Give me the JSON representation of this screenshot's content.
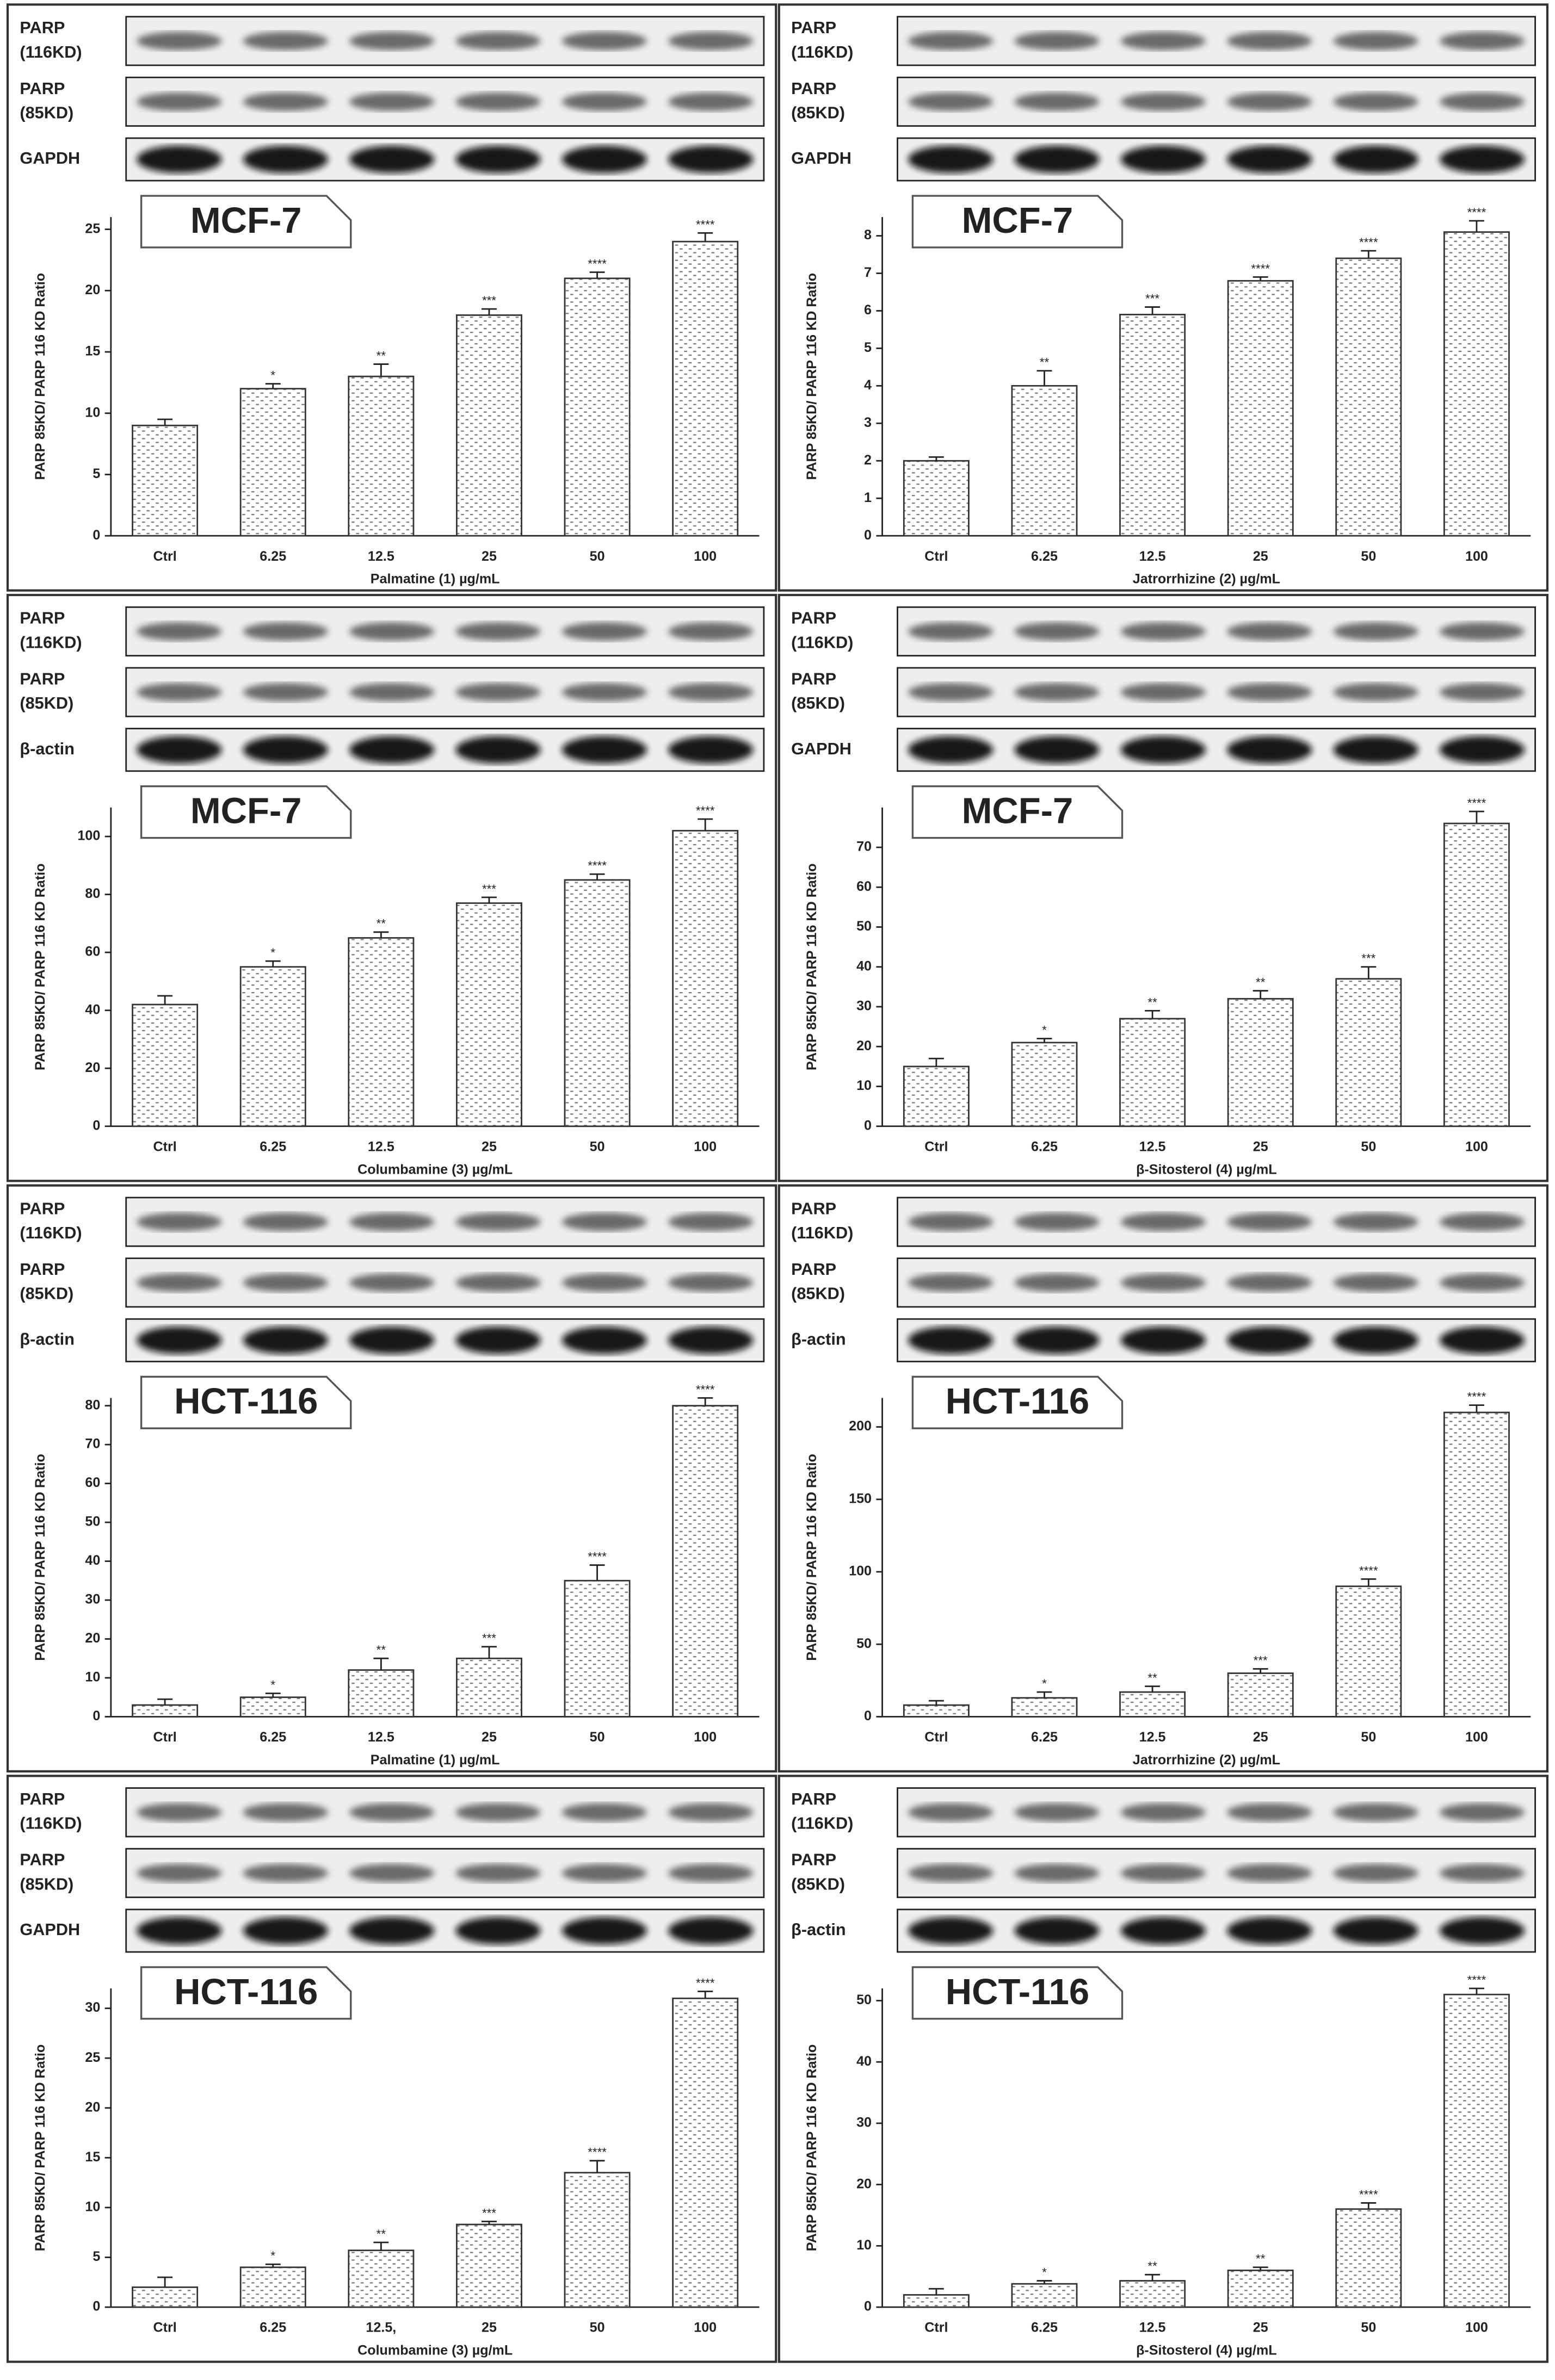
{
  "chart_data": [
    {
      "type": "bar",
      "cell_line": "MCF-7",
      "blots": [
        [
          "PARP",
          "(116KD)"
        ],
        [
          "PARP",
          "(85KD)"
        ],
        [
          "GAPDH"
        ]
      ],
      "ylabel": "PARP 85KD/ PARP 116 KD Ratio",
      "xlabel": "Palmatine  (1) µg/mL",
      "categories": [
        "Ctrl",
        "6.25",
        "12.5",
        "25",
        "50",
        "100"
      ],
      "values": [
        9,
        12,
        13,
        18,
        21,
        24
      ],
      "errors": [
        0.5,
        0.4,
        1,
        0.5,
        0.5,
        0.7
      ],
      "significance": [
        null,
        "*",
        "**",
        "***",
        "****",
        "****"
      ],
      "ylim": [
        0,
        26
      ],
      "yticks": [
        0,
        5,
        10,
        15,
        20,
        25
      ]
    },
    {
      "type": "bar",
      "cell_line": "MCF-7",
      "blots": [
        [
          "PARP",
          "(116KD)"
        ],
        [
          "PARP",
          "(85KD)"
        ],
        [
          "GAPDH"
        ]
      ],
      "ylabel": "PARP 85KD/ PARP 116 KD Ratio",
      "xlabel": "Jatrorrhizine  (2) µg/mL",
      "categories": [
        "Ctrl",
        "6.25",
        "12.5",
        "25",
        "50",
        "100"
      ],
      "values": [
        2,
        4,
        5.9,
        6.8,
        7.4,
        8.1
      ],
      "errors": [
        0.1,
        0.4,
        0.2,
        0.1,
        0.2,
        0.3
      ],
      "significance": [
        null,
        "**",
        "***",
        "****",
        "****",
        "****"
      ],
      "ylim": [
        0,
        8.5
      ],
      "yticks": [
        0,
        1,
        2,
        3,
        4,
        5,
        6,
        7,
        8
      ]
    },
    {
      "type": "bar",
      "cell_line": "MCF-7",
      "blots": [
        [
          "PARP",
          "(116KD)"
        ],
        [
          "PARP",
          "(85KD)"
        ],
        [
          "β-actin"
        ]
      ],
      "ylabel": "PARP 85KD/ PARP 116 KD Ratio",
      "xlabel": "Columbamine  (3) µg/mL",
      "categories": [
        "Ctrl",
        "6.25",
        "12.5",
        "25",
        "50",
        "100"
      ],
      "values": [
        42,
        55,
        65,
        77,
        85,
        102
      ],
      "errors": [
        3,
        2,
        2,
        2,
        2,
        4
      ],
      "significance": [
        null,
        "*",
        "**",
        "***",
        "****",
        "****"
      ],
      "ylim": [
        0,
        110
      ],
      "yticks": [
        0,
        20,
        40,
        60,
        80,
        100
      ]
    },
    {
      "type": "bar",
      "cell_line": "MCF-7",
      "blots": [
        [
          "PARP",
          "(116KD)"
        ],
        [
          "PARP",
          "(85KD)"
        ],
        [
          "GAPDH"
        ]
      ],
      "ylabel": "PARP 85KD/ PARP 116 KD Ratio",
      "xlabel": "β-Sitosterol  (4)  µg/mL",
      "categories": [
        "Ctrl",
        "6.25",
        "12.5",
        "25",
        "50",
        "100"
      ],
      "values": [
        15,
        21,
        27,
        32,
        37,
        76
      ],
      "errors": [
        2,
        1,
        2,
        2,
        3,
        3
      ],
      "significance": [
        null,
        "*",
        "**",
        "**",
        "***",
        "****"
      ],
      "ylim": [
        0,
        80
      ],
      "yticks": [
        0,
        10,
        20,
        30,
        40,
        50,
        60,
        70
      ]
    },
    {
      "type": "bar",
      "cell_line": "HCT-116",
      "blots": [
        [
          "PARP",
          "(116KD)"
        ],
        [
          "PARP",
          "(85KD)"
        ],
        [
          "β-actin"
        ]
      ],
      "ylabel": "PARP 85KD/ PARP 116 KD Ratio",
      "xlabel": "Palmatine  (1)  µg/mL",
      "categories": [
        "Ctrl",
        "6.25",
        "12.5",
        "25",
        "50",
        "100"
      ],
      "values": [
        3,
        5,
        12,
        15,
        35,
        80
      ],
      "errors": [
        1.5,
        1,
        3,
        3,
        4,
        2
      ],
      "significance": [
        null,
        "*",
        "**",
        "***",
        "****",
        "****"
      ],
      "ylim": [
        0,
        82
      ],
      "yticks": [
        0,
        10,
        20,
        30,
        40,
        50,
        60,
        70,
        80
      ]
    },
    {
      "type": "bar",
      "cell_line": "HCT-116",
      "blots": [
        [
          "PARP",
          "(116KD)"
        ],
        [
          "PARP",
          "(85KD)"
        ],
        [
          "β-actin"
        ]
      ],
      "ylabel": "PARP 85KD/ PARP 116 KD Ratio",
      "xlabel": "Jatrorrhizine  (2)  µg/mL",
      "categories": [
        "Ctrl",
        "6.25",
        "12.5",
        "25",
        "50",
        "100"
      ],
      "values": [
        8,
        13,
        17,
        30,
        90,
        210
      ],
      "errors": [
        3,
        4,
        4,
        3,
        5,
        5
      ],
      "significance": [
        null,
        "*",
        "**",
        "***",
        "****",
        "****"
      ],
      "ylim": [
        0,
        220
      ],
      "yticks": [
        0,
        50,
        100,
        150,
        200
      ]
    },
    {
      "type": "bar",
      "cell_line": "HCT-116",
      "blots": [
        [
          "PARP",
          "(116KD)"
        ],
        [
          "PARP",
          "(85KD)"
        ],
        [
          "GAPDH"
        ]
      ],
      "ylabel": "PARP 85KD/ PARP 116 KD Ratio",
      "xlabel": "Columbamine   (3)  µg/mL",
      "categories": [
        "Ctrl",
        "6.25",
        "12.5,",
        "25",
        "50",
        "100"
      ],
      "values": [
        2,
        4,
        5.7,
        8.3,
        13.5,
        31
      ],
      "errors": [
        1,
        0.3,
        0.8,
        0.3,
        1.2,
        0.7
      ],
      "significance": [
        null,
        "*",
        "**",
        "***",
        "****",
        "****"
      ],
      "ylim": [
        0,
        32
      ],
      "yticks": [
        0,
        5,
        10,
        15,
        20,
        25,
        30
      ]
    },
    {
      "type": "bar",
      "cell_line": "HCT-116",
      "blots": [
        [
          "PARP",
          "(116KD)"
        ],
        [
          "PARP",
          "(85KD)"
        ],
        [
          "β-actin"
        ]
      ],
      "ylabel": "PARP 85KD/ PARP 116 KD Ratio",
      "xlabel": "β-Sitosterol  (4)  µg/mL",
      "categories": [
        "Ctrl",
        "6.25",
        "12.5",
        "25",
        "50",
        "100"
      ],
      "values": [
        2,
        3.8,
        4.3,
        6,
        16,
        51
      ],
      "errors": [
        1,
        0.5,
        1,
        0.5,
        1,
        1
      ],
      "significance": [
        null,
        "*",
        "**",
        "**",
        "****",
        "****"
      ],
      "ylim": [
        0,
        52
      ],
      "yticks": [
        0,
        10,
        20,
        30,
        40,
        50
      ]
    }
  ]
}
